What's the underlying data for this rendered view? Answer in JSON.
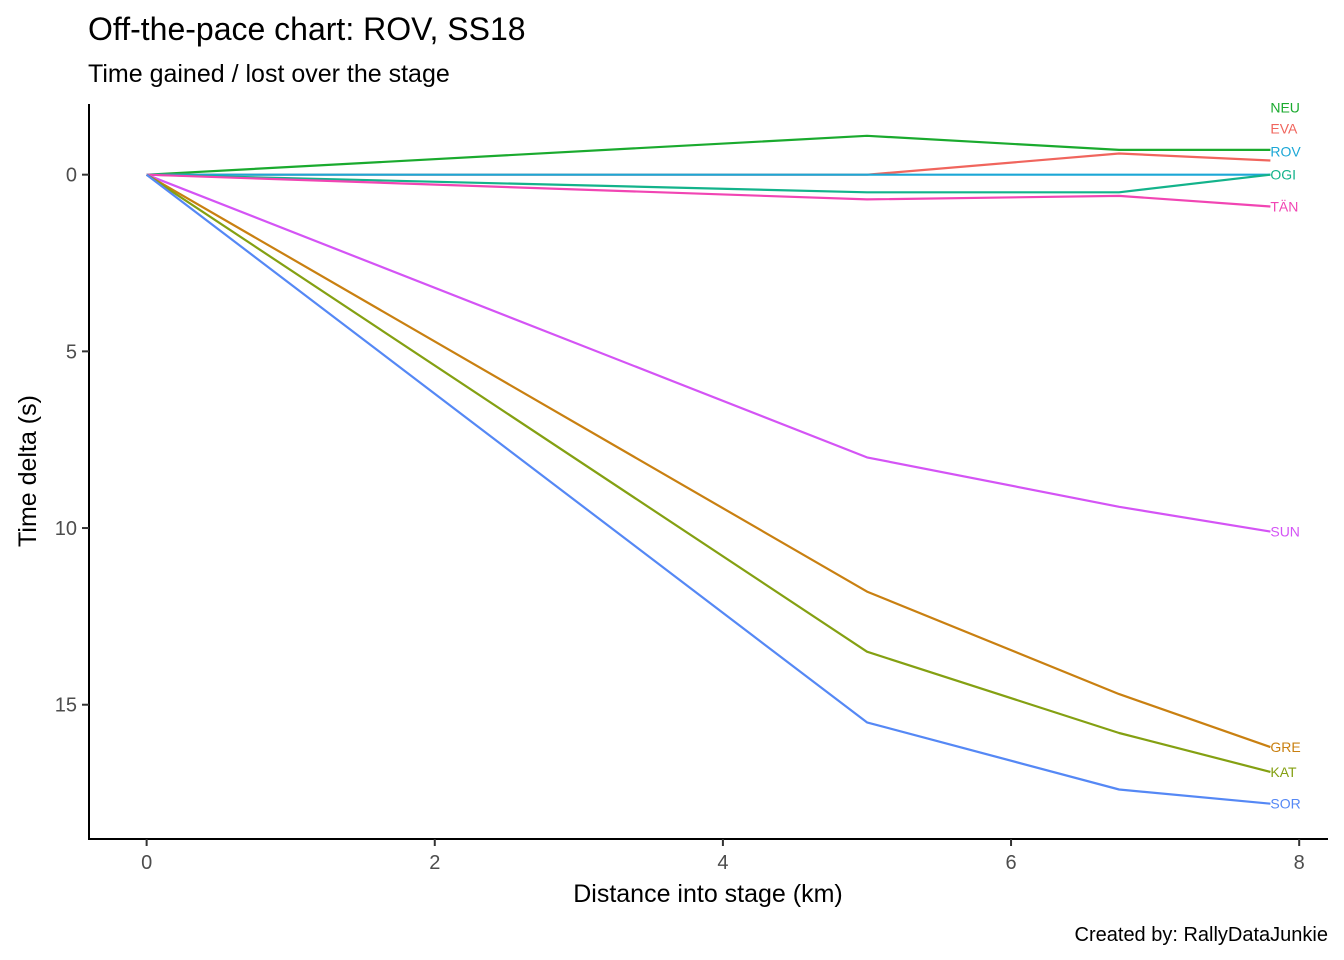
{
  "chart_data": {
    "type": "line",
    "title": "Off-the-pace chart: ROV, SS18",
    "subtitle": "Time gained / lost over the stage",
    "xlabel": "Distance into stage (km)",
    "ylabel": "Time delta (s)",
    "caption": "Created by: RallyDataJunkie",
    "xlim": [
      -0.4,
      8.2
    ],
    "ylim": [
      -2,
      18.8
    ],
    "y_reversed": true,
    "x_ticks": [
      0,
      2,
      4,
      6,
      8
    ],
    "y_ticks": [
      0,
      5,
      10,
      15
    ],
    "grid": false,
    "legend": "none",
    "series": [
      {
        "name": "NEU",
        "color": "#1aaa2e",
        "x": [
          0,
          5,
          6.75,
          7.8
        ],
        "y": [
          0,
          -1.1,
          -0.7,
          -0.7
        ],
        "label_y": -1.9
      },
      {
        "name": "EVA",
        "color": "#f0655d",
        "x": [
          0,
          5,
          6.75,
          7.8
        ],
        "y": [
          0,
          0,
          -0.6,
          -0.4
        ],
        "label_y": -1.3
      },
      {
        "name": "ROV",
        "color": "#1ca7d6",
        "x": [
          0,
          5,
          6.75,
          7.8
        ],
        "y": [
          0,
          0,
          0,
          0
        ],
        "label_y": -0.65
      },
      {
        "name": "OGI",
        "color": "#13b38b",
        "x": [
          0,
          5,
          6.75,
          7.8
        ],
        "y": [
          0,
          0.5,
          0.5,
          0
        ],
        "label_y": 0
      },
      {
        "name": "TÄN",
        "color": "#f145b3",
        "x": [
          0,
          5,
          6.75,
          7.8
        ],
        "y": [
          0,
          0.7,
          0.6,
          0.9
        ],
        "label_y": 0.9
      },
      {
        "name": "SUN",
        "color": "#d454f5",
        "x": [
          0,
          5,
          6.75,
          7.8
        ],
        "y": [
          0,
          8,
          9.4,
          10.1
        ],
        "label_y": 10.1
      },
      {
        "name": "GRE",
        "color": "#c98011",
        "x": [
          0,
          5,
          6.75,
          7.8
        ],
        "y": [
          0,
          11.8,
          14.7,
          16.2
        ],
        "label_y": 16.2
      },
      {
        "name": "KAT",
        "color": "#84a012",
        "x": [
          0,
          5,
          6.75,
          7.8
        ],
        "y": [
          0,
          13.5,
          15.8,
          16.9
        ],
        "label_y": 16.9
      },
      {
        "name": "SOR",
        "color": "#5588f5",
        "x": [
          0,
          5,
          6.75,
          7.8
        ],
        "y": [
          0,
          15.5,
          17.4,
          17.8
        ],
        "label_y": 17.8
      }
    ]
  }
}
